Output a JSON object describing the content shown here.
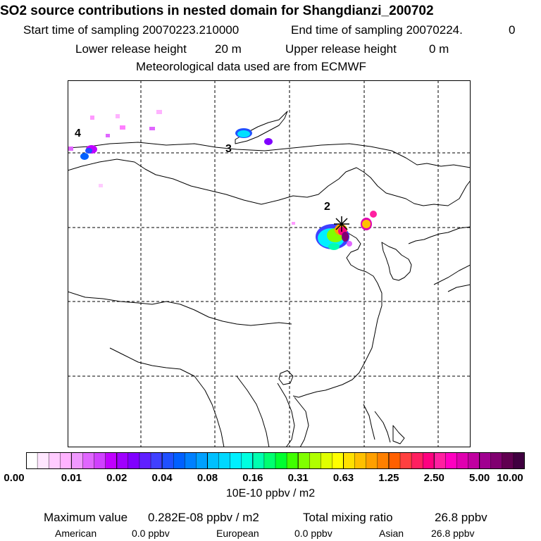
{
  "header": {
    "title": "SO2 source contributions in nested domain for Shangdianzi_200702",
    "start_label": "Start time of sampling 20070223.210000",
    "end_label": "End time of sampling 20070224.",
    "end_value": "0",
    "lower_label": "Lower release height",
    "lower_value": "20 m",
    "upper_label": "Upper release height",
    "upper_value": "0 m",
    "met_line": "Meteorological data used are from ECMWF"
  },
  "map": {
    "region_labels": [
      "4",
      "3",
      "2"
    ],
    "receptor": "Shangdianzi"
  },
  "colorbar": {
    "ticks": [
      "0.00",
      "0.01",
      "0.02",
      "0.04",
      "0.08",
      "0.16",
      "0.31",
      "0.63",
      "1.25",
      "2.50",
      "5.00",
      "10.00"
    ],
    "units": "10E-10 ppbv / m2",
    "colors": [
      "#ffffff",
      "#ffe6ff",
      "#ffccff",
      "#ffb3ff",
      "#f099ff",
      "#e066ff",
      "#d040ff",
      "#c000ff",
      "#a000ff",
      "#8000ff",
      "#6020ff",
      "#4040ff",
      "#2050ff",
      "#0060ff",
      "#0080ff",
      "#00a0ff",
      "#00c0ff",
      "#00d8ff",
      "#00f0ff",
      "#00ffe0",
      "#00ffb0",
      "#00ff70",
      "#00ff30",
      "#40ff00",
      "#80ff00",
      "#b0ff00",
      "#e0ff00",
      "#ffff00",
      "#ffe000",
      "#ffc000",
      "#ffa000",
      "#ff8000",
      "#ff6000",
      "#ff4040",
      "#ff2060",
      "#ff0080",
      "#ff20a0",
      "#ff00c0",
      "#e000b0",
      "#c000a0",
      "#a00090",
      "#800070",
      "#600050",
      "#400040"
    ]
  },
  "stats": {
    "max_label": "Maximum value",
    "max_value": "0.282E-08 ppbv / m2",
    "total_label": "Total mixing ratio",
    "total_value": "26.8 ppbv",
    "regions": [
      {
        "name": "American",
        "value": "0.0 ppbv"
      },
      {
        "name": "European",
        "value": "0.0 ppbv"
      },
      {
        "name": "Asian",
        "value": "26.8 ppbv"
      }
    ]
  }
}
